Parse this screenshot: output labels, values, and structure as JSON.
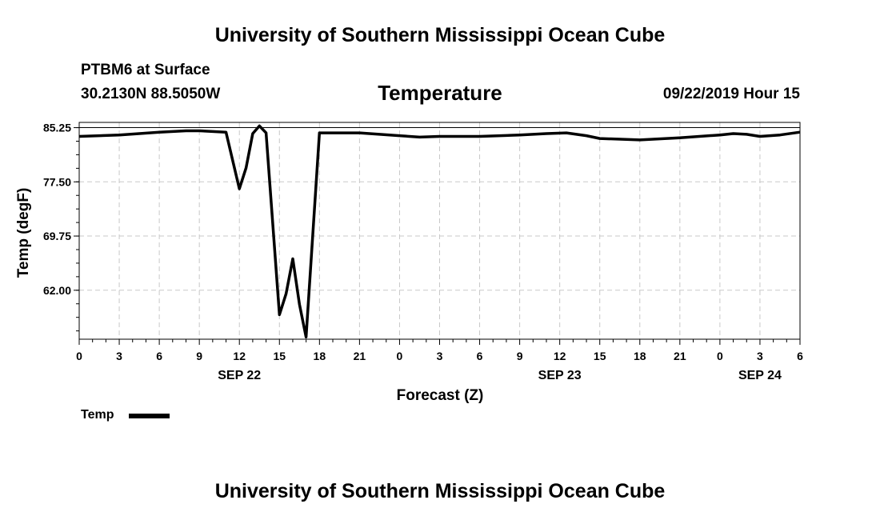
{
  "header": {
    "title": "University of Southern Mississippi Ocean Cube",
    "station": "PTBM6 at Surface",
    "coords": "30.2130N 88.5050W",
    "timestamp": "09/22/2019 Hour 15"
  },
  "footer": {
    "title": "University of Southern Mississippi Ocean Cube"
  },
  "legend": {
    "label": "Temp",
    "color": "#000000"
  },
  "chart_data": {
    "type": "line",
    "title": "Temperature",
    "xlabel": "Forecast (Z)",
    "ylabel": "Temp (degF)",
    "xlim": [
      0,
      54
    ],
    "ylim": [
      55,
      86
    ],
    "grid": true,
    "x_ticks": [
      {
        "x": 0,
        "label": "0"
      },
      {
        "x": 3,
        "label": "3"
      },
      {
        "x": 6,
        "label": "6"
      },
      {
        "x": 9,
        "label": "9"
      },
      {
        "x": 12,
        "label": "12"
      },
      {
        "x": 15,
        "label": "15"
      },
      {
        "x": 18,
        "label": "18"
      },
      {
        "x": 21,
        "label": "21"
      },
      {
        "x": 24,
        "label": "0"
      },
      {
        "x": 27,
        "label": "3"
      },
      {
        "x": 30,
        "label": "6"
      },
      {
        "x": 33,
        "label": "9"
      },
      {
        "x": 36,
        "label": "12"
      },
      {
        "x": 39,
        "label": "15"
      },
      {
        "x": 42,
        "label": "18"
      },
      {
        "x": 45,
        "label": "21"
      },
      {
        "x": 48,
        "label": "0"
      },
      {
        "x": 51,
        "label": "3"
      },
      {
        "x": 54,
        "label": "6"
      }
    ],
    "date_labels": [
      {
        "x": 12,
        "label": "SEP 22"
      },
      {
        "x": 36,
        "label": "SEP 23"
      },
      {
        "x": 51,
        "label": "SEP 24"
      }
    ],
    "y_ticks": [
      {
        "y": 62.0,
        "label": "62.00"
      },
      {
        "y": 69.75,
        "label": "69.75"
      },
      {
        "y": 77.5,
        "label": "77.50"
      },
      {
        "y": 85.25,
        "label": "85.25"
      }
    ],
    "series": [
      {
        "name": "Temp",
        "color": "#000000",
        "x": [
          0,
          3,
          6,
          8,
          9,
          11,
          12,
          12.5,
          13,
          13.5,
          14,
          15,
          15.5,
          16,
          16.5,
          17,
          18,
          21,
          24,
          25.5,
          27,
          30,
          33,
          35,
          36.5,
          38,
          39,
          42,
          45,
          48,
          49,
          50,
          51,
          52.5,
          54
        ],
        "values": [
          84.0,
          84.2,
          84.6,
          84.8,
          84.8,
          84.6,
          76.5,
          79.5,
          84.4,
          85.5,
          84.5,
          58.5,
          61.5,
          66.5,
          60.0,
          55.3,
          84.5,
          84.5,
          84.1,
          83.9,
          84.0,
          84.0,
          84.2,
          84.4,
          84.5,
          84.1,
          83.7,
          83.5,
          83.8,
          84.2,
          84.4,
          84.3,
          84.0,
          84.2,
          84.6
        ]
      }
    ]
  }
}
